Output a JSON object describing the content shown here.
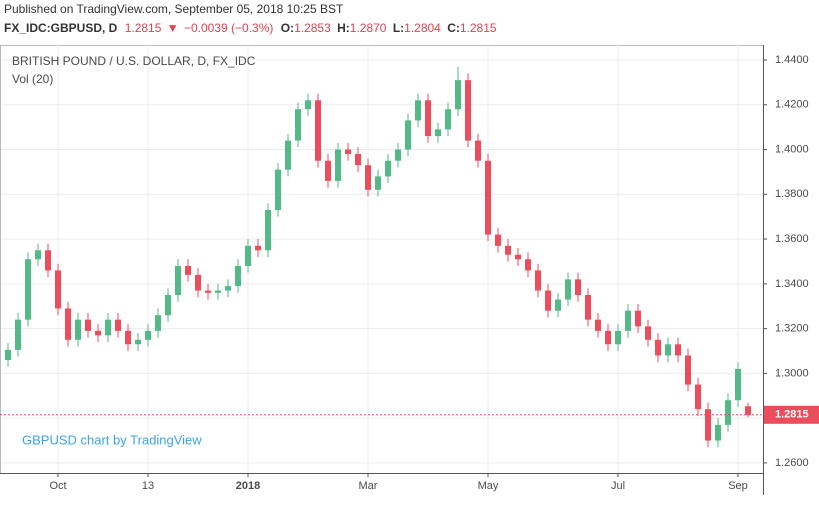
{
  "header": {
    "published": "Published on TradingView.com, September 05, 2018 10:25 BST",
    "symbol": "FX_IDC:GBPUSD, D",
    "last": "1.2815",
    "arrow": "▼",
    "change": "−0.0039 (−0.3%)",
    "o_label": "O:",
    "o": "1.2853",
    "h_label": "H:",
    "h": "1.2870",
    "l_label": "L:",
    "l": "1.2804",
    "c_label": "C:",
    "c": "1.2815"
  },
  "chart_data": {
    "type": "candlestick",
    "title": "BRITISH POUND / U.S. DOLLAR, D, FX_IDC",
    "subtitle": "Vol (20)",
    "watermark": "GBPUSD chart by TradingView",
    "up_color": "#53b987",
    "down_color": "#eb4d5c",
    "grid": true,
    "categories": [
      null,
      null,
      null,
      null,
      null,
      "Oct",
      null,
      null,
      null,
      null,
      null,
      null,
      null,
      null,
      "13",
      null,
      null,
      null,
      null,
      null,
      null,
      null,
      null,
      null,
      "2018",
      null,
      null,
      null,
      null,
      null,
      null,
      null,
      null,
      null,
      null,
      null,
      "Mar",
      null,
      null,
      null,
      null,
      null,
      null,
      null,
      null,
      null,
      null,
      null,
      "May",
      null,
      null,
      null,
      null,
      null,
      null,
      null,
      null,
      null,
      null,
      null,
      null,
      "Jul",
      null,
      null,
      null,
      null,
      null,
      null,
      null,
      null,
      null,
      null,
      null,
      "Sep",
      null
    ],
    "open": [
      1.306,
      1.3105,
      1.324,
      1.351,
      1.355,
      1.346,
      1.329,
      1.315,
      1.324,
      1.319,
      1.317,
      1.324,
      1.319,
      1.313,
      1.315,
      1.319,
      1.326,
      1.335,
      1.348,
      1.344,
      1.337,
      1.336,
      1.337,
      1.339,
      1.348,
      1.357,
      1.355,
      1.373,
      1.391,
      1.404,
      1.418,
      1.422,
      1.395,
      1.386,
      1.4,
      1.398,
      1.393,
      1.382,
      1.388,
      1.395,
      1.4,
      1.413,
      1.422,
      1.406,
      1.409,
      1.418,
      1.431,
      1.404,
      1.395,
      1.362,
      1.357,
      1.353,
      1.351,
      1.346,
      1.337,
      1.328,
      1.333,
      1.342,
      1.335,
      1.324,
      1.319,
      1.313,
      1.319,
      1.328,
      1.321,
      1.315,
      1.308,
      1.313,
      1.308,
      1.295,
      1.284,
      1.27,
      1.277,
      1.288,
      1.2853
    ],
    "high": [
      1.3135,
      1.327,
      1.354,
      1.358,
      1.358,
      1.349,
      1.332,
      1.327,
      1.327,
      1.322,
      1.327,
      1.327,
      1.322,
      1.318,
      1.322,
      1.329,
      1.338,
      1.351,
      1.351,
      1.347,
      1.34,
      1.34,
      1.342,
      1.351,
      1.36,
      1.36,
      1.376,
      1.394,
      1.407,
      1.421,
      1.425,
      1.425,
      1.398,
      1.403,
      1.403,
      1.401,
      1.396,
      1.391,
      1.398,
      1.403,
      1.416,
      1.425,
      1.425,
      1.412,
      1.421,
      1.437,
      1.434,
      1.407,
      1.398,
      1.365,
      1.36,
      1.356,
      1.354,
      1.349,
      1.34,
      1.336,
      1.345,
      1.345,
      1.338,
      1.327,
      1.322,
      1.322,
      1.331,
      1.331,
      1.324,
      1.318,
      1.316,
      1.316,
      1.311,
      1.298,
      1.287,
      1.28,
      1.291,
      1.305,
      1.287
    ],
    "low": [
      1.303,
      1.3075,
      1.321,
      1.348,
      1.343,
      1.326,
      1.312,
      1.312,
      1.316,
      1.314,
      1.314,
      1.316,
      1.31,
      1.31,
      1.312,
      1.316,
      1.323,
      1.332,
      1.341,
      1.334,
      1.333,
      1.333,
      1.334,
      1.336,
      1.345,
      1.352,
      1.352,
      1.37,
      1.388,
      1.401,
      1.415,
      1.392,
      1.383,
      1.383,
      1.395,
      1.39,
      1.379,
      1.379,
      1.385,
      1.392,
      1.397,
      1.41,
      1.403,
      1.403,
      1.406,
      1.415,
      1.401,
      1.392,
      1.359,
      1.354,
      1.35,
      1.348,
      1.343,
      1.334,
      1.325,
      1.325,
      1.33,
      1.332,
      1.321,
      1.316,
      1.31,
      1.31,
      1.316,
      1.318,
      1.312,
      1.305,
      1.305,
      1.305,
      1.292,
      1.281,
      1.267,
      1.267,
      1.274,
      1.285,
      1.2804
    ],
    "close": [
      1.3105,
      1.324,
      1.351,
      1.355,
      1.346,
      1.329,
      1.315,
      1.324,
      1.319,
      1.317,
      1.324,
      1.319,
      1.313,
      1.315,
      1.319,
      1.326,
      1.335,
      1.348,
      1.344,
      1.337,
      1.336,
      1.337,
      1.339,
      1.348,
      1.357,
      1.355,
      1.373,
      1.391,
      1.404,
      1.418,
      1.422,
      1.395,
      1.386,
      1.4,
      1.398,
      1.393,
      1.382,
      1.388,
      1.395,
      1.4,
      1.413,
      1.422,
      1.406,
      1.409,
      1.418,
      1.431,
      1.404,
      1.395,
      1.362,
      1.357,
      1.353,
      1.351,
      1.346,
      1.337,
      1.328,
      1.333,
      1.342,
      1.335,
      1.324,
      1.319,
      1.313,
      1.319,
      1.328,
      1.321,
      1.315,
      1.308,
      1.313,
      1.308,
      1.295,
      1.284,
      1.27,
      1.277,
      1.288,
      1.302,
      1.2815
    ],
    "ylim": [
      1.2555,
      1.4467
    ],
    "yticks": [
      {
        "value": 1.26,
        "label": "1.2600"
      },
      {
        "value": 1.28,
        "label": "1.2800"
      },
      {
        "value": 1.3,
        "label": "1.3000"
      },
      {
        "value": 1.32,
        "label": "1.3200"
      },
      {
        "value": 1.34,
        "label": "1.3400"
      },
      {
        "value": 1.36,
        "label": "1.3600"
      },
      {
        "value": 1.38,
        "label": "1.3800"
      },
      {
        "value": 1.4,
        "label": "1.4000"
      },
      {
        "value": 1.42,
        "label": "1.4200"
      },
      {
        "value": 1.44,
        "label": "1.4400"
      }
    ]
  }
}
